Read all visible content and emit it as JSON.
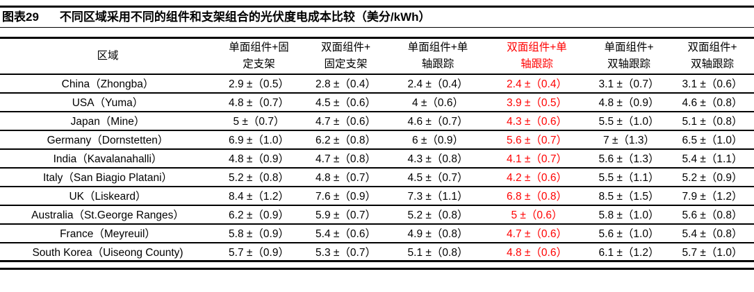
{
  "title": {
    "figure_label": "图表29",
    "text": "不同区域采用不同的组件和支架组合的光伏度电成本比较（美分/kWh）"
  },
  "colors": {
    "text": "#000000",
    "highlight_red": "#ff0000",
    "rule": "#000000",
    "background": "#ffffff"
  },
  "table": {
    "region_header": "区域",
    "unit_note": "美分/kWh",
    "highlight_column_index": 3,
    "column_headers": [
      {
        "line1": "单面组件+固",
        "line2": "定支架",
        "full": "单面组件+固定支架",
        "highlight": false
      },
      {
        "line1": "双面组件+",
        "line2": "固定支架",
        "full": "双面组件+固定支架",
        "highlight": false
      },
      {
        "line1": "单面组件+单",
        "line2": "轴跟踪",
        "full": "单面组件+单轴跟踪",
        "highlight": false
      },
      {
        "line1": "双面组件+单",
        "line2": "轴跟踪",
        "full": "双面组件+单轴跟踪",
        "highlight": true
      },
      {
        "line1": "单面组件+",
        "line2": "双轴跟踪",
        "full": "单面组件+双轴跟踪",
        "highlight": false
      },
      {
        "line1": "双面组件+",
        "line2": "双轴跟踪",
        "full": "双面组件+双轴跟踪",
        "highlight": false
      }
    ],
    "rows": [
      {
        "region": "China（Zhongba）",
        "values": [
          "2.9 ±（0.5）",
          "2.8 ±（0.4）",
          "2.4 ±（0.4）",
          "2.4 ±（0.4）",
          "3.1 ±（0.7）",
          "3.1 ±（0.6）"
        ]
      },
      {
        "region": "USA（Yuma）",
        "values": [
          "4.8 ±（0.7）",
          "4.5 ±（0.6）",
          "4 ±（0.6）",
          "3.9 ±（0.5）",
          "4.8 ±（0.9）",
          "4.6 ±（0.8）"
        ]
      },
      {
        "region": "Japan（Mine）",
        "values": [
          "5 ±（0.7）",
          "4.7 ±（0.6）",
          "4.6 ±（0.7）",
          "4.3 ±（0.6）",
          "5.5 ±（1.0）",
          "5.1 ±（0.8）"
        ]
      },
      {
        "region": "Germany（Dornstetten）",
        "values": [
          "6.9 ±（1.0）",
          "6.2 ±（0.8）",
          "6 ±（0.9）",
          "5.6 ±（0.7）",
          "7 ±（1.3）",
          "6.5 ±（1.0）"
        ]
      },
      {
        "region": "India（Kavalanahalli）",
        "values": [
          "4.8 ±（0.9）",
          "4.7 ±（0.8）",
          "4.3 ±（0.8）",
          "4.1 ±（0.7）",
          "5.6 ±（1.3）",
          "5.4 ±（1.1）"
        ]
      },
      {
        "region": "Italy（San Biagio Platani）",
        "values": [
          "5.2 ±（0.8）",
          "4.8 ±（0.7）",
          "4.5 ±（0.7）",
          "4.2 ±（0.6）",
          "5.5 ±（1.1）",
          "5.2 ±（0.9）"
        ]
      },
      {
        "region": "UK（Liskeard）",
        "values": [
          "8.4 ±（1.2）",
          "7.6 ±（0.9）",
          "7.3 ±（1.1）",
          "6.8 ±（0.8）",
          "8.5 ±（1.5）",
          "7.9 ±（1.2）"
        ]
      },
      {
        "region": "Australia（St.George Ranges）",
        "values": [
          "6.2 ±（0.9）",
          "5.9 ±（0.7）",
          "5.2 ±（0.8）",
          "5 ±（0.6）",
          "5.8 ±（1.0）",
          "5.6 ±（0.8）"
        ]
      },
      {
        "region": "France（Meyreuil）",
        "values": [
          "5.8 ±（0.9）",
          "5.4 ±（0.6）",
          "4.9 ±（0.8）",
          "4.7 ±（0.6）",
          "5.6 ±（1.0）",
          "5.4 ±（0.8）"
        ]
      },
      {
        "region": "South Korea（Uiseong County)",
        "values": [
          "5.7 ±（0.9）",
          "5.3 ±（0.7）",
          "5.1 ±（0.8）",
          "4.8 ±（0.6）",
          "6.1 ±（1.2）",
          "5.7 ±（1.0）"
        ]
      }
    ]
  }
}
